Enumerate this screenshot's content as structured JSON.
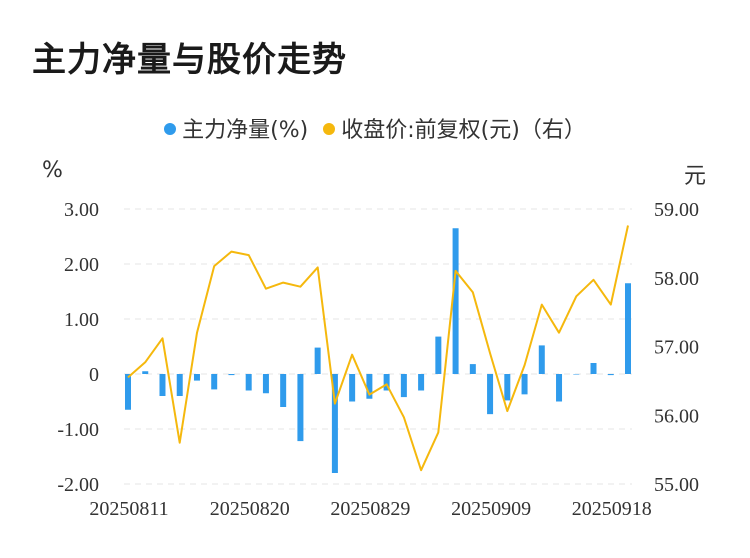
{
  "title": "主力净量与股价走势",
  "legend": [
    {
      "label": "主力净量(%)",
      "color": "#2f9bec"
    },
    {
      "label": "收盘价:前复权(元)（右）",
      "color": "#f5b80d"
    }
  ],
  "chart_data": {
    "type": "bar+line",
    "title": "主力净量与股价走势",
    "left_axis": {
      "unit": "%",
      "min": -2,
      "max": 3,
      "ticks": [
        "3.00",
        "2.00",
        "1.00",
        "0",
        "-1.00",
        "-2.00"
      ],
      "tick_values": [
        3,
        2,
        1,
        0,
        -1,
        -2
      ]
    },
    "right_axis": {
      "unit": "元",
      "min": 55,
      "max": 59,
      "ticks": [
        "59.00",
        "58.00",
        "57.00",
        "56.00",
        "55.00"
      ],
      "tick_values": [
        59,
        58,
        57,
        56,
        55
      ]
    },
    "x_labels": [
      "20250811",
      "20250820",
      "20250829",
      "20250909",
      "20250918"
    ],
    "x_label_indices": [
      0,
      7,
      14,
      21,
      28
    ],
    "n_points": 30,
    "series": [
      {
        "name": "主力净量(%)",
        "type": "bar",
        "axis": "left",
        "color": "#2f9bec",
        "values": [
          -0.65,
          0.05,
          -0.4,
          -0.4,
          -0.12,
          -0.28,
          -0.02,
          -0.3,
          -0.35,
          -0.6,
          -1.22,
          0.48,
          -1.8,
          -0.5,
          -0.45,
          -0.3,
          -0.42,
          -0.3,
          0.68,
          2.65,
          0.18,
          -0.73,
          -0.48,
          -0.37,
          0.52,
          -0.5,
          0.0,
          0.2,
          -0.02,
          1.65
        ]
      },
      {
        "name": "收盘价:前复权(元)",
        "type": "line",
        "axis": "right",
        "color": "#f5b80d",
        "values": [
          56.55,
          56.77,
          57.12,
          55.6,
          57.2,
          58.17,
          58.38,
          58.33,
          57.84,
          57.93,
          57.87,
          58.15,
          56.17,
          56.88,
          56.3,
          56.45,
          55.97,
          55.2,
          55.75,
          58.1,
          57.79,
          56.9,
          56.06,
          56.73,
          57.61,
          57.2,
          57.73,
          57.97,
          57.61,
          58.76
        ]
      }
    ]
  }
}
